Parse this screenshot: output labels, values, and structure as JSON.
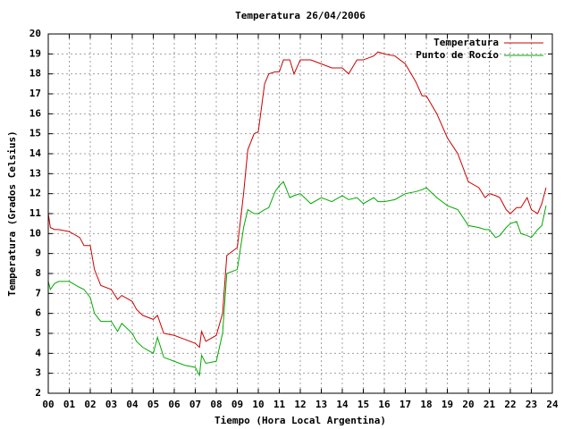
{
  "chart_data": {
    "type": "line",
    "title": "Temperatura 26/04/2006",
    "x_label": "Tiempo (Hora Local Argentina)",
    "y_label": "Temperatura (Grados Celsius)",
    "x": [
      0,
      0.1,
      0.3,
      0.5,
      1.0,
      1.5,
      1.7,
      2.0,
      2.2,
      2.5,
      3.0,
      3.3,
      3.5,
      4.0,
      4.2,
      4.5,
      5.0,
      5.2,
      5.5,
      6.0,
      6.5,
      7.0,
      7.2,
      7.3,
      7.5,
      8.0,
      8.3,
      8.5,
      9.0,
      9.3,
      9.5,
      9.8,
      10.0,
      10.3,
      10.5,
      10.8,
      11.0,
      11.2,
      11.5,
      11.7,
      12.0,
      12.5,
      13.0,
      13.5,
      14.0,
      14.3,
      14.7,
      15.0,
      15.5,
      15.7,
      16.0,
      16.5,
      17.0,
      17.5,
      17.8,
      18.0,
      18.5,
      19.0,
      19.5,
      20.0,
      20.5,
      20.8,
      21.0,
      21.3,
      21.5,
      21.8,
      22.0,
      22.3,
      22.5,
      22.8,
      23.0,
      23.3,
      23.5,
      23.7
    ],
    "series": [
      {
        "name": "Temperatura",
        "color": "#cc0000",
        "values": [
          11.0,
          10.3,
          10.2,
          10.2,
          10.1,
          9.8,
          9.4,
          9.4,
          8.2,
          7.4,
          7.2,
          6.7,
          6.9,
          6.6,
          6.2,
          5.9,
          5.7,
          5.9,
          5.0,
          4.9,
          4.7,
          4.5,
          4.3,
          5.1,
          4.6,
          4.9,
          6.0,
          8.9,
          9.3,
          12.0,
          14.2,
          15.0,
          15.1,
          17.5,
          18.0,
          18.1,
          18.1,
          18.7,
          18.7,
          18.0,
          18.7,
          18.7,
          18.5,
          18.3,
          18.3,
          18.0,
          18.7,
          18.7,
          18.9,
          19.1,
          19.0,
          18.9,
          18.5,
          17.6,
          16.9,
          16.9,
          16.0,
          14.8,
          14.0,
          12.6,
          12.3,
          11.8,
          12.0,
          11.9,
          11.8,
          11.2,
          11.0,
          11.3,
          11.3,
          11.8,
          11.2,
          11.0,
          11.5,
          12.3
        ]
      },
      {
        "name": "Punto de Rocío",
        "color": "#00aa00",
        "values": [
          7.6,
          7.2,
          7.5,
          7.6,
          7.6,
          7.3,
          7.2,
          6.8,
          6.0,
          5.6,
          5.6,
          5.1,
          5.5,
          5.0,
          4.6,
          4.3,
          4.0,
          4.8,
          3.8,
          3.6,
          3.4,
          3.3,
          2.9,
          3.9,
          3.5,
          3.6,
          5.0,
          8.0,
          8.2,
          10.3,
          11.2,
          11.0,
          11.0,
          11.2,
          11.3,
          12.1,
          12.4,
          12.6,
          11.8,
          11.9,
          12.0,
          11.5,
          11.8,
          11.6,
          11.9,
          11.7,
          11.8,
          11.5,
          11.8,
          11.6,
          11.6,
          11.7,
          12.0,
          12.1,
          12.2,
          12.3,
          11.8,
          11.4,
          11.2,
          10.4,
          10.3,
          10.2,
          10.2,
          9.8,
          9.9,
          10.3,
          10.5,
          10.6,
          10.0,
          9.9,
          9.8,
          10.2,
          10.4,
          11.4
        ]
      }
    ],
    "xlim": [
      0,
      24
    ],
    "xticks": [
      {
        "value": 0,
        "label": "00"
      },
      {
        "value": 1,
        "label": "01"
      },
      {
        "value": 2,
        "label": "02"
      },
      {
        "value": 3,
        "label": "03"
      },
      {
        "value": 4,
        "label": "04"
      },
      {
        "value": 5,
        "label": "05"
      },
      {
        "value": 6,
        "label": "06"
      },
      {
        "value": 7,
        "label": "07"
      },
      {
        "value": 8,
        "label": "08"
      },
      {
        "value": 9,
        "label": "09"
      },
      {
        "value": 10,
        "label": "10"
      },
      {
        "value": 11,
        "label": "11"
      },
      {
        "value": 12,
        "label": "12"
      },
      {
        "value": 13,
        "label": "13"
      },
      {
        "value": 14,
        "label": "14"
      },
      {
        "value": 15,
        "label": "15"
      },
      {
        "value": 16,
        "label": "16"
      },
      {
        "value": 17,
        "label": "17"
      },
      {
        "value": 18,
        "label": "18"
      },
      {
        "value": 19,
        "label": "19"
      },
      {
        "value": 20,
        "label": "20"
      },
      {
        "value": 21,
        "label": "21"
      },
      {
        "value": 22,
        "label": "22"
      },
      {
        "value": 23,
        "label": "23"
      },
      {
        "value": 24,
        "label": "24"
      }
    ],
    "ylim": [
      2,
      20
    ],
    "yticks": [
      2,
      3,
      4,
      5,
      6,
      7,
      8,
      9,
      10,
      11,
      12,
      13,
      14,
      15,
      16,
      17,
      18,
      19,
      20
    ],
    "grid": true,
    "legend": "top-right"
  }
}
